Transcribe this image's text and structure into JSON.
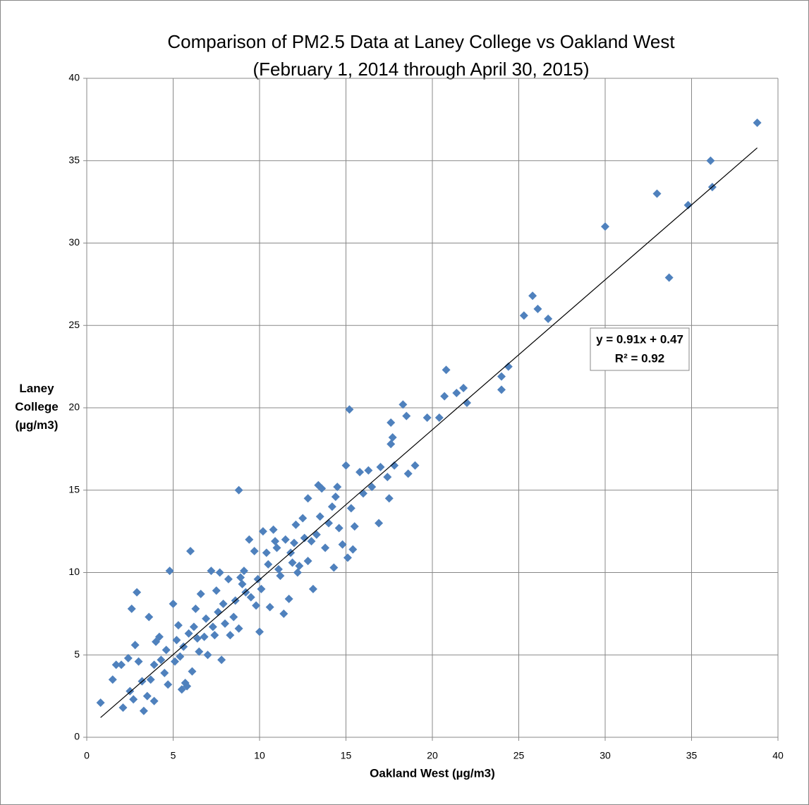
{
  "chart_data": {
    "type": "scatter",
    "title": "Comparison of PM2.5 Data at Laney College vs Oakland West",
    "subtitle": "(February 1, 2014 through April 30, 2015)",
    "x_label": "Oakland West (µg/m3)",
    "y_label": "Laney College (µg/m3)",
    "xlim": [
      0,
      40
    ],
    "xticks": [
      0,
      5,
      10,
      15,
      20,
      25,
      30,
      35,
      40
    ],
    "ylim": [
      0,
      40
    ],
    "yticks": [
      0,
      5,
      10,
      15,
      20,
      25,
      30,
      35,
      40
    ],
    "grid": true,
    "series": [
      {
        "name": "PM2.5",
        "color": "#4f81bd",
        "x": [
          0.8,
          1.5,
          1.7,
          2.1,
          2.0,
          2.4,
          2.5,
          2.6,
          2.7,
          2.8,
          2.9,
          3.0,
          3.3,
          3.5,
          3.6,
          3.7,
          3.9,
          4.0,
          4.2,
          4.5,
          4.7,
          4.8,
          5.0,
          5.1,
          5.3,
          5.5,
          5.6,
          5.7,
          5.8,
          6.0,
          6.1,
          6.3,
          6.5,
          6.6,
          6.8,
          7.0,
          7.2,
          7.3,
          7.5,
          7.7,
          7.8,
          8.0,
          8.2,
          8.3,
          8.5,
          8.8,
          8.8,
          9.0,
          9.4,
          9.5,
          9.7,
          9.8,
          10.0,
          10.1,
          10.2,
          10.5,
          10.6,
          10.8,
          11.0,
          11.2,
          11.4,
          11.5,
          11.7,
          11.9,
          12.0,
          12.1,
          12.3,
          12.5,
          12.8,
          12.8,
          13.0,
          13.1,
          13.3,
          13.4,
          13.6,
          13.8,
          14.0,
          14.2,
          14.3,
          14.5,
          14.6,
          14.8,
          15.0,
          15.1,
          15.2,
          15.3,
          15.4,
          15.5,
          15.8,
          16.0,
          16.3,
          16.5,
          16.9,
          17.0,
          17.4,
          17.5,
          17.6,
          17.6,
          17.7,
          17.8,
          18.3,
          18.5,
          18.6,
          19.0,
          19.7,
          20.4,
          20.7,
          20.8,
          21.4,
          21.8,
          22.0,
          24.0,
          24.0,
          24.4,
          25.3,
          25.8,
          26.1,
          26.7,
          30.0,
          33.0,
          33.7,
          34.8,
          36.1,
          36.2,
          38.8,
          4.3,
          5.2,
          5.9,
          6.4,
          6.9,
          7.4,
          7.6,
          8.6,
          9.2,
          9.9,
          10.4,
          11.1,
          11.8,
          12.6,
          13.5,
          14.4,
          9.1,
          6.2,
          5.4,
          4.6,
          3.9,
          3.2,
          7.9,
          8.9,
          10.9,
          12.2
        ],
        "values": [
          2.1,
          3.5,
          4.4,
          1.8,
          4.4,
          4.8,
          2.8,
          7.8,
          2.3,
          5.6,
          8.8,
          4.6,
          1.6,
          2.5,
          7.3,
          3.5,
          2.2,
          5.8,
          6.1,
          3.9,
          3.2,
          10.1,
          8.1,
          4.6,
          6.8,
          2.9,
          5.5,
          3.3,
          3.1,
          11.3,
          4.0,
          7.8,
          5.2,
          8.7,
          6.1,
          5.0,
          10.1,
          6.7,
          8.9,
          10.0,
          4.7,
          6.9,
          9.6,
          6.2,
          7.3,
          15.0,
          6.6,
          9.3,
          12.0,
          8.5,
          11.3,
          8.0,
          6.4,
          9.0,
          12.5,
          10.5,
          7.9,
          12.6,
          11.5,
          9.8,
          7.5,
          12.0,
          8.4,
          10.6,
          11.8,
          12.9,
          10.4,
          13.3,
          14.5,
          10.7,
          11.9,
          9.0,
          12.3,
          15.3,
          15.1,
          11.5,
          13.0,
          14.0,
          10.3,
          15.2,
          12.7,
          11.7,
          16.5,
          10.9,
          19.9,
          13.9,
          11.4,
          12.8,
          16.1,
          14.8,
          16.2,
          15.2,
          13.0,
          16.4,
          15.8,
          14.5,
          17.8,
          19.1,
          18.2,
          16.5,
          20.2,
          19.5,
          16.0,
          16.5,
          19.4,
          19.4,
          20.7,
          22.3,
          20.9,
          21.2,
          20.3,
          21.1,
          21.9,
          22.5,
          25.6,
          26.8,
          26.0,
          25.4,
          31.0,
          33.0,
          27.9,
          32.3,
          35.0,
          33.4,
          37.3,
          4.7,
          5.9,
          6.3,
          6.0,
          7.2,
          6.2,
          7.6,
          8.3,
          8.8,
          9.6,
          11.2,
          10.2,
          11.2,
          12.1,
          13.4,
          14.6,
          10.1,
          6.7,
          4.9,
          5.3,
          4.4,
          3.4,
          8.1,
          9.7,
          11.9,
          10.0
        ]
      }
    ],
    "trendline": {
      "slope": 0.91,
      "intercept": 0.47,
      "label": "y = 0.91x + 0.47",
      "r2_label": "R² = 0.92"
    }
  }
}
